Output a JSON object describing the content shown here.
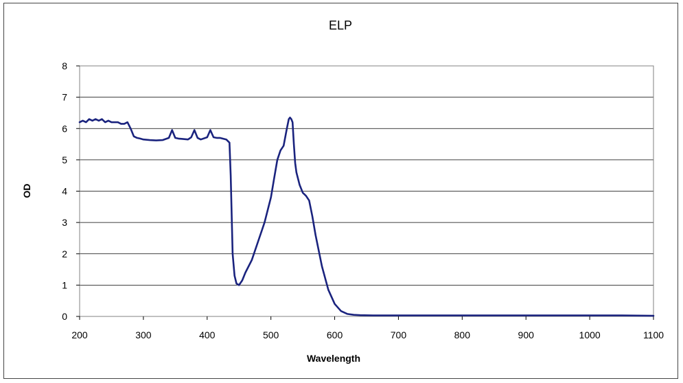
{
  "chart_data": {
    "type": "line",
    "title": "ELP",
    "xlabel": "Wavelength",
    "ylabel": "OD",
    "xlim": [
      200,
      1100
    ],
    "ylim": [
      0,
      8
    ],
    "xticks": [
      "200",
      "300",
      "400",
      "500",
      "600",
      "700",
      "800",
      "900",
      "1000",
      "1100"
    ],
    "yticks": [
      "0",
      "1",
      "2",
      "3",
      "4",
      "5",
      "6",
      "7",
      "8"
    ],
    "grid": "horizontal",
    "legend": "none",
    "series": [
      {
        "color": "#1a237e",
        "x": [
          200,
          205,
          210,
          215,
          220,
          225,
          230,
          235,
          240,
          245,
          250,
          255,
          260,
          265,
          270,
          275,
          280,
          285,
          290,
          295,
          300,
          310,
          320,
          330,
          340,
          345,
          350,
          355,
          360,
          370,
          375,
          380,
          385,
          390,
          400,
          405,
          410,
          415,
          420,
          430,
          435,
          437,
          440,
          443,
          446,
          450,
          455,
          460,
          470,
          480,
          490,
          500,
          505,
          510,
          515,
          520,
          525,
          528,
          530,
          532,
          534,
          536,
          538,
          540,
          545,
          550,
          555,
          560,
          565,
          570,
          580,
          590,
          600,
          610,
          620,
          630,
          640,
          660,
          680,
          700,
          720,
          740,
          760,
          780,
          800,
          850,
          900,
          950,
          1000,
          1050,
          1100
        ],
        "y": [
          6.2,
          6.25,
          6.2,
          6.3,
          6.25,
          6.3,
          6.25,
          6.3,
          6.2,
          6.25,
          6.2,
          6.2,
          6.2,
          6.15,
          6.15,
          6.2,
          6.0,
          5.75,
          5.7,
          5.68,
          5.65,
          5.63,
          5.62,
          5.63,
          5.7,
          5.95,
          5.7,
          5.68,
          5.67,
          5.65,
          5.72,
          5.95,
          5.7,
          5.65,
          5.72,
          5.95,
          5.72,
          5.7,
          5.7,
          5.65,
          5.55,
          4.5,
          2.0,
          1.3,
          1.05,
          1.0,
          1.15,
          1.4,
          1.8,
          2.4,
          3.0,
          3.8,
          4.4,
          5.0,
          5.3,
          5.45,
          6.0,
          6.3,
          6.35,
          6.3,
          6.2,
          5.5,
          4.9,
          4.6,
          4.2,
          3.95,
          3.85,
          3.7,
          3.2,
          2.6,
          1.6,
          0.85,
          0.4,
          0.17,
          0.08,
          0.05,
          0.04,
          0.03,
          0.03,
          0.03,
          0.03,
          0.03,
          0.03,
          0.03,
          0.03,
          0.03,
          0.03,
          0.03,
          0.03,
          0.03,
          0.02
        ]
      }
    ]
  }
}
